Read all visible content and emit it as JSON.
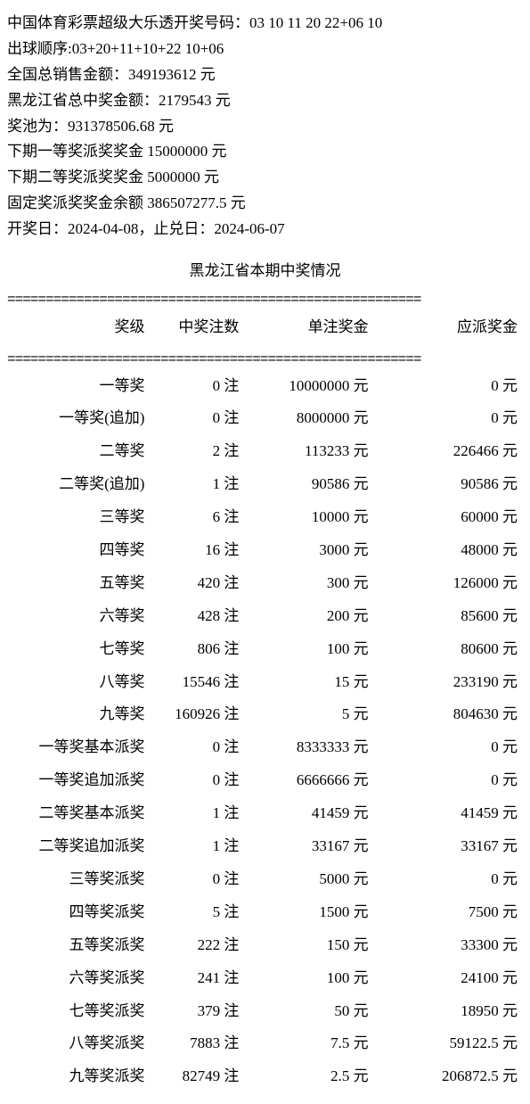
{
  "info": {
    "line1": "中国体育彩票超级大乐透开奖号码：03 10 11 20 22+06 10",
    "line2": "出球顺序:03+20+11+10+22 10+06",
    "line3": "全国总销售金额：349193612 元",
    "line4": "黑龙江省总中奖金额：2179543 元",
    "line5": "奖池为：931378506.68 元",
    "line6": "下期一等奖派奖奖金 15000000 元",
    "line7": "下期二等奖派奖奖金 5000000 元",
    "line8": "固定奖派奖奖金余额 386507277.5 元",
    "line9": "开奖日：2024-04-08，止兑日：2024-06-07"
  },
  "section_title": "黑龙江省本期中奖情况",
  "divider": "======================================================",
  "headers": {
    "level": "奖级",
    "count": "中奖注数",
    "unitprize": "单注奖金",
    "total": "应派奖金"
  },
  "rows": [
    {
      "level": "一等奖",
      "count": "0",
      "unitprize": "10000000",
      "total": "0"
    },
    {
      "level": "一等奖(追加)",
      "count": "0",
      "unitprize": "8000000",
      "total": "0"
    },
    {
      "level": "二等奖",
      "count": "2",
      "unitprize": "113233",
      "total": "226466"
    },
    {
      "level": "二等奖(追加)",
      "count": "1",
      "unitprize": "90586",
      "total": "90586"
    },
    {
      "level": "三等奖",
      "count": "6",
      "unitprize": "10000",
      "total": "60000"
    },
    {
      "level": "四等奖",
      "count": "16",
      "unitprize": "3000",
      "total": "48000"
    },
    {
      "level": "五等奖",
      "count": "420",
      "unitprize": "300",
      "total": "126000"
    },
    {
      "level": "六等奖",
      "count": "428",
      "unitprize": "200",
      "total": "85600"
    },
    {
      "level": "七等奖",
      "count": "806",
      "unitprize": "100",
      "total": "80600"
    },
    {
      "level": "八等奖",
      "count": "15546",
      "unitprize": "15",
      "total": "233190"
    },
    {
      "level": "九等奖",
      "count": "160926",
      "unitprize": "5",
      "total": "804630"
    },
    {
      "level": "一等奖基本派奖",
      "count": "0",
      "unitprize": "8333333",
      "total": "0"
    },
    {
      "level": "一等奖追加派奖",
      "count": "0",
      "unitprize": "6666666",
      "total": "0"
    },
    {
      "level": "二等奖基本派奖",
      "count": "1",
      "unitprize": "41459",
      "total": "41459"
    },
    {
      "level": "二等奖追加派奖",
      "count": "1",
      "unitprize": "33167",
      "total": "33167"
    },
    {
      "level": "三等奖派奖",
      "count": "0",
      "unitprize": "5000",
      "total": "0"
    },
    {
      "level": "四等奖派奖",
      "count": "5",
      "unitprize": "1500",
      "total": "7500"
    },
    {
      "level": "五等奖派奖",
      "count": "222",
      "unitprize": "150",
      "total": "33300"
    },
    {
      "level": "六等奖派奖",
      "count": "241",
      "unitprize": "100",
      "total": "24100"
    },
    {
      "level": "七等奖派奖",
      "count": "379",
      "unitprize": "50",
      "total": "18950"
    },
    {
      "level": "八等奖派奖",
      "count": "7883",
      "unitprize": "7.5",
      "total": "59122.5"
    },
    {
      "level": "九等奖派奖",
      "count": "82749",
      "unitprize": "2.5",
      "total": "206872.5"
    }
  ]
}
